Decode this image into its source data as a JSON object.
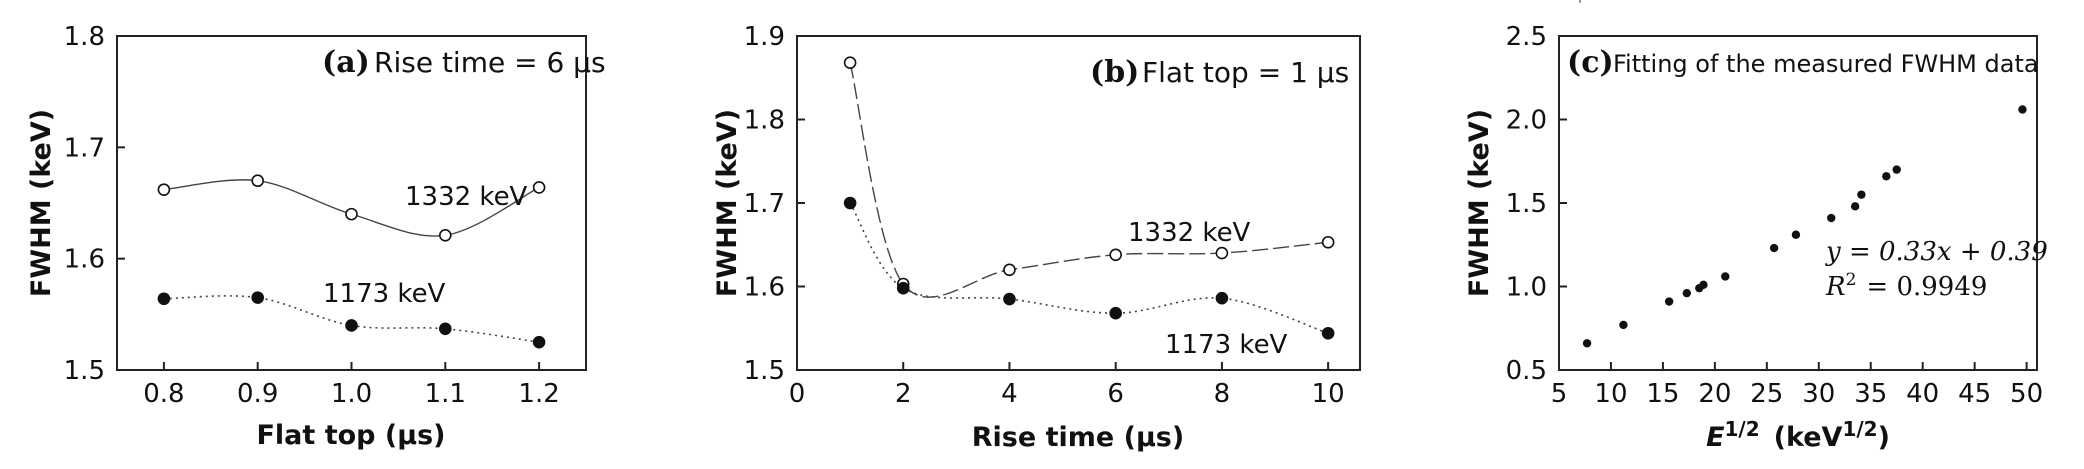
{
  "chart_data": [
    {
      "type": "line",
      "panel_letter": "(a)",
      "title": "Rise time = 6 µs",
      "xlabel": "Flat top  (µs)",
      "ylabel": "FWHM  (keV)",
      "xlim": [
        0.75,
        1.25
      ],
      "ylim": [
        1.5,
        1.8
      ],
      "xticks": [
        "0.8",
        "0.9",
        "1.0",
        "1.1",
        "1.2"
      ],
      "yticks": [
        "1.5",
        "1.6",
        "1.7",
        "1.8"
      ],
      "series": [
        {
          "name": "1332 keV",
          "marker": "open",
          "style": "solid",
          "x": [
            0.8,
            0.9,
            1.0,
            1.1,
            1.2
          ],
          "y": [
            1.662,
            1.67,
            1.64,
            1.621,
            1.664
          ]
        },
        {
          "name": "1173 keV",
          "marker": "filled",
          "style": "dotted",
          "x": [
            0.8,
            0.9,
            1.0,
            1.1,
            1.2
          ],
          "y": [
            1.564,
            1.565,
            1.54,
            1.537,
            1.525
          ]
        }
      ],
      "grid": false
    },
    {
      "type": "line",
      "panel_letter": "(b)",
      "title": "Flat top = 1 µs",
      "xlabel": "Rise time   (µs)",
      "ylabel": "FWHM  (keV)",
      "xlim": [
        0,
        10.6
      ],
      "ylim": [
        1.5,
        1.9
      ],
      "xticks": [
        "0",
        "2",
        "4",
        "6",
        "8",
        "10"
      ],
      "yticks": [
        "1.5",
        "1.6",
        "1.7",
        "1.8",
        "1.9"
      ],
      "series": [
        {
          "name": "1332 keV",
          "marker": "open",
          "style": "dashed",
          "x": [
            1,
            2,
            4,
            6,
            8,
            10
          ],
          "y": [
            1.868,
            1.603,
            1.62,
            1.638,
            1.64,
            1.653
          ]
        },
        {
          "name": "1173 keV",
          "marker": "filled",
          "style": "dotted",
          "x": [
            1,
            2,
            4,
            6,
            8,
            10
          ],
          "y": [
            1.7,
            1.598,
            1.585,
            1.568,
            1.586,
            1.544
          ]
        }
      ],
      "grid": false
    },
    {
      "type": "scatter",
      "panel_letter": "(c)",
      "title": "Fitting of the measured FWHM data",
      "xlabel_main": "E",
      "xlabel_sup": "1/2",
      "xlabel_unit": "(keV",
      "xlabel_unit_sup": "1/2",
      "xlabel_close": ")",
      "ylabel": "FWHM  (keV)",
      "xlim": [
        5,
        51
      ],
      "ylim": [
        0.5,
        2.5
      ],
      "xticks": [
        "5",
        "10",
        "15",
        "20",
        "25",
        "30",
        "35",
        "40",
        "45",
        "50"
      ],
      "yticks": [
        "0.5",
        "1.0",
        "1.5",
        "2.0",
        "2.5"
      ],
      "points": {
        "x": [
          7.7,
          11.2,
          15.6,
          17.3,
          18.5,
          18.9,
          21.0,
          25.7,
          27.8,
          31.2,
          33.5,
          34.1,
          36.5,
          37.5,
          49.6
        ],
        "y": [
          0.66,
          0.77,
          0.91,
          0.96,
          0.99,
          1.01,
          1.06,
          1.23,
          1.31,
          1.41,
          1.48,
          1.55,
          1.66,
          1.7,
          2.06
        ]
      },
      "fit": {
        "slope": 0.33,
        "intercept": 0.39,
        "x_range": [
          7.0,
          50.0
        ]
      },
      "fit_equation": "y = 0.33x + 0.39",
      "r2_label": "R",
      "r2_sup": "2",
      "r2_value": "= 0.9949",
      "grid": false
    }
  ]
}
